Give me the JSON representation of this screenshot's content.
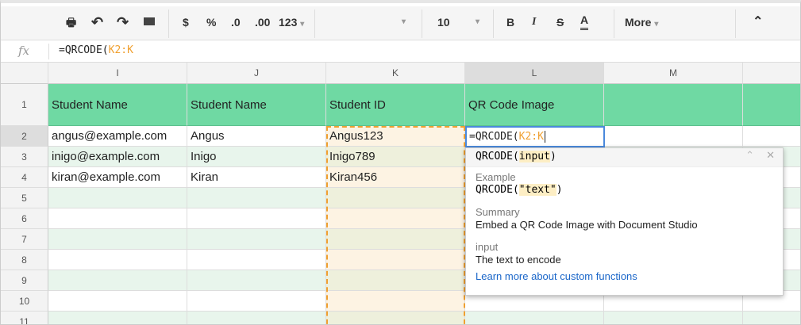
{
  "toolbar": {
    "currency": "$",
    "percent": "%",
    "decrease_decimal": ".0",
    "increase_decimal": ".00",
    "format": "123",
    "font_size": "10",
    "bold": "B",
    "italic": "I",
    "strike": "S",
    "text_color": "A",
    "more": "More"
  },
  "formula_bar": {
    "fx": "fx",
    "prefix": "=QRCODE(",
    "range": "K2:K"
  },
  "columns": [
    "I",
    "J",
    "K",
    "L",
    "M"
  ],
  "rows": [
    "1",
    "2",
    "3",
    "4",
    "5",
    "6",
    "7",
    "8",
    "9",
    "10",
    "11"
  ],
  "headers": [
    "Student Name",
    "Student Name",
    "Student ID",
    "QR Code Image",
    ""
  ],
  "data": [
    [
      "angus@example.com",
      "Angus",
      "Angus123"
    ],
    [
      "inigo@example.com",
      "Inigo",
      "Inigo789"
    ],
    [
      "kiran@example.com",
      "Kiran",
      "Kiran456"
    ]
  ],
  "editor": {
    "prefix": "=QRCODE(",
    "range": "K2:K"
  },
  "popup": {
    "sig_name": "QRCODE(",
    "sig_arg": "input",
    "sig_close": ")",
    "example_label": "Example",
    "example_name": "QRCODE(",
    "example_arg": "\"text\"",
    "example_close": ")",
    "summary_label": "Summary",
    "summary": "Embed a QR Code Image with Document Studio",
    "arg_label": "input",
    "arg_desc": "The text to encode",
    "link": "Learn more about custom functions"
  },
  "colors": {
    "header_green": "#6fd9a3",
    "band_green": "#e8f5ec",
    "selection": "#fdf3e3",
    "accent_orange": "#f0a030",
    "link_blue": "#1a66c9"
  }
}
